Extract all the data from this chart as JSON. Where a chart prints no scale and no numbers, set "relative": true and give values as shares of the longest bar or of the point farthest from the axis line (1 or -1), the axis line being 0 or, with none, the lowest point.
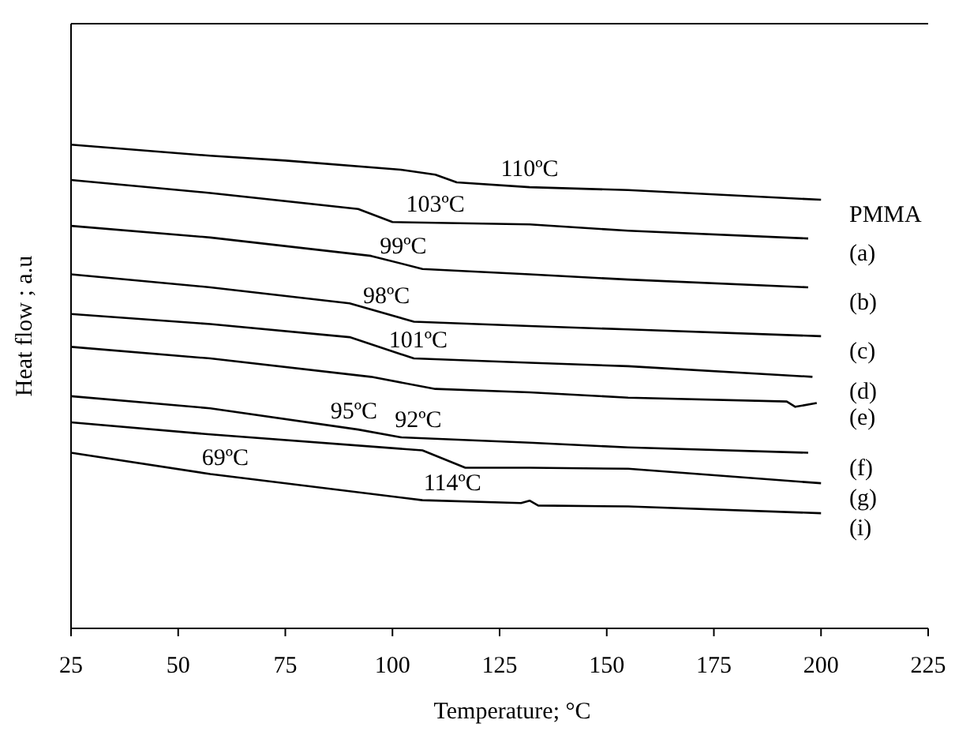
{
  "chart_data": {
    "type": "line",
    "xlabel": "Temperature; °C",
    "ylabel": "Heat flow ; a.u",
    "relative": true,
    "xlim": [
      25,
      225
    ],
    "xticks": [
      25,
      50,
      75,
      100,
      125,
      150,
      175,
      200,
      225
    ],
    "tick_labels": "x",
    "grid": false,
    "legend": false,
    "marker": "none",
    "line_style": "solid",
    "series": [
      {
        "name": "PMMA",
        "color": "#000000",
        "x": [
          25,
          57.5,
          75,
          102,
          110,
          115,
          132,
          155,
          200
        ],
        "values": [
          1,
          0.977,
          0.967,
          0.948,
          0.938,
          0.922,
          0.912,
          0.906,
          0.886
        ]
      },
      {
        "name": "(a)",
        "color": "#000000",
        "x": [
          25,
          57.5,
          92,
          100,
          132,
          155,
          197
        ],
        "values": [
          0.927,
          0.9,
          0.867,
          0.84,
          0.835,
          0.822,
          0.806
        ]
      },
      {
        "name": "(b)",
        "color": "#000000",
        "x": [
          25,
          57.5,
          95,
          107,
          132,
          155,
          197
        ],
        "values": [
          0.832,
          0.808,
          0.77,
          0.743,
          0.732,
          0.721,
          0.705
        ]
      },
      {
        "name": "(c)",
        "color": "#000000",
        "x": [
          25,
          57.5,
          90,
          105,
          132,
          155,
          200
        ],
        "values": [
          0.732,
          0.705,
          0.672,
          0.634,
          0.625,
          0.618,
          0.604
        ]
      },
      {
        "name": "(d)",
        "color": "#000000",
        "x": [
          25,
          57.5,
          90,
          105,
          132,
          155,
          198
        ],
        "values": [
          0.65,
          0.629,
          0.602,
          0.558,
          0.549,
          0.542,
          0.52
        ]
      },
      {
        "name": "(e)",
        "color": "#000000",
        "x": [
          25,
          57.5,
          95,
          110,
          132,
          155,
          192,
          194,
          199
        ],
        "values": [
          0.582,
          0.558,
          0.52,
          0.495,
          0.488,
          0.477,
          0.469,
          0.458,
          0.466
        ]
      },
      {
        "name": "(f)",
        "color": "#000000",
        "x": [
          25,
          57.5,
          92,
          102,
          132,
          155,
          197
        ],
        "values": [
          0.48,
          0.455,
          0.411,
          0.395,
          0.384,
          0.374,
          0.363
        ]
      },
      {
        "name": "(g)",
        "color": "#000000",
        "x": [
          25,
          57.5,
          107,
          117,
          132,
          155,
          200
        ],
        "values": [
          0.426,
          0.401,
          0.368,
          0.332,
          0.332,
          0.33,
          0.3
        ]
      },
      {
        "name": "(i)",
        "color": "#000000",
        "x": [
          25,
          57.5,
          107,
          130,
          132,
          134,
          155,
          200
        ],
        "values": [
          0.363,
          0.319,
          0.265,
          0.259,
          0.264,
          0.254,
          0.252,
          0.238
        ]
      }
    ],
    "annotations": [
      {
        "text": "110ºC",
        "x": 132,
        "y": 0.912
      },
      {
        "text": "103ºC",
        "x": 110,
        "y": 0.838
      },
      {
        "text": "99ºC",
        "x": 102.5,
        "y": 0.753
      },
      {
        "text": "98ºC",
        "x": 98.6,
        "y": 0.65
      },
      {
        "text": "101ºC",
        "x": 106,
        "y": 0.558
      },
      {
        "text": "95ºC",
        "x": 91,
        "y": 0.412
      },
      {
        "text": "92ºC",
        "x": 106,
        "y": 0.394
      },
      {
        "text": "114ºC",
        "x": 114,
        "y": 0.263
      },
      {
        "text": "69ºC",
        "x": 61,
        "y": 0.315
      }
    ]
  }
}
